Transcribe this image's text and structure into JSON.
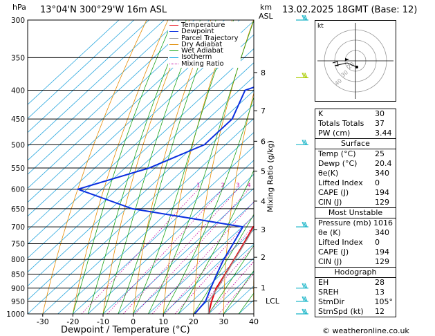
{
  "header": {
    "location": "13°04'N  300°29'W  16m  ASL",
    "datetime": "13.02.2025  18GMT  (Base: 12)",
    "left_unit": "hPa",
    "right_unit_km": "km",
    "right_unit_asl": "ASL",
    "credit": "© weatheronline.co.uk"
  },
  "chart_data": {
    "type": "line",
    "title": "",
    "xlabel": "Dewpoint / Temperature (°C)",
    "ylabel": "Mixing Ratio (g/kg)",
    "xlim": [
      -35,
      40
    ],
    "ylim_pressure": [
      1000,
      300
    ],
    "pressure_ticks": [
      300,
      350,
      400,
      450,
      500,
      550,
      600,
      650,
      700,
      750,
      800,
      850,
      900,
      950,
      1000
    ],
    "temp_ticks": [
      -30,
      -20,
      -10,
      0,
      10,
      20,
      30,
      40
    ],
    "km_ticks": [
      {
        "label": "8",
        "p": 372
      },
      {
        "label": "7",
        "p": 435
      },
      {
        "label": "6",
        "p": 493
      },
      {
        "label": "5",
        "p": 557
      },
      {
        "label": "4",
        "p": 630
      },
      {
        "label": "3",
        "p": 708
      },
      {
        "label": "2",
        "p": 793
      },
      {
        "label": "1",
        "p": 898
      },
      {
        "label": "LCL",
        "p": 948
      }
    ],
    "mixing_ratio_labels": [
      "1",
      "2",
      "3",
      "4",
      "6",
      "8",
      "10",
      "15",
      "20",
      "25"
    ],
    "legend": [
      {
        "name": "Temperature",
        "color": "#e8000b"
      },
      {
        "name": "Dewpoint",
        "color": "#0a2fe0"
      },
      {
        "name": "Parcel Trajectory",
        "color": "#9a9a9a"
      },
      {
        "name": "Dry Adiabat",
        "color": "#e08a00"
      },
      {
        "name": "Wet Adiabat",
        "color": "#00a000"
      },
      {
        "name": "Isotherm",
        "color": "#00a0e0"
      },
      {
        "name": "Mixing Ratio",
        "color": "#c000a0"
      }
    ],
    "series": [
      {
        "name": "Temperature",
        "color": "#e8000b",
        "points": [
          [
            1000,
            25
          ],
          [
            950,
            21.5
          ],
          [
            900,
            18.3
          ],
          [
            850,
            16.3
          ],
          [
            800,
            14
          ],
          [
            750,
            11.5
          ],
          [
            700,
            8.6
          ],
          [
            675,
            12.5
          ],
          [
            650,
            14.5
          ],
          [
            600,
            11
          ],
          [
            550,
            7
          ],
          [
            500,
            0
          ],
          [
            450,
            -6.5
          ],
          [
            400,
            -14
          ],
          [
            350,
            -24
          ],
          [
            300,
            -35
          ]
        ]
      },
      {
        "name": "Dewpoint",
        "color": "#0a2fe0",
        "points": [
          [
            1000,
            20.4
          ],
          [
            950,
            19.5
          ],
          [
            900,
            16.5
          ],
          [
            850,
            13.5
          ],
          [
            800,
            10.5
          ],
          [
            750,
            8
          ],
          [
            700,
            5.2
          ],
          [
            650,
            -38
          ],
          [
            600,
            -63
          ],
          [
            550,
            -47
          ],
          [
            500,
            -37
          ],
          [
            450,
            -37
          ],
          [
            400,
            -43
          ],
          [
            350,
            -24
          ],
          [
            300,
            -38
          ]
        ]
      },
      {
        "name": "Parcel Trajectory",
        "color": "#9a9a9a",
        "points": [
          [
            1000,
            25
          ],
          [
            950,
            20.5
          ],
          [
            900,
            18.8
          ],
          [
            850,
            16.5
          ],
          [
            800,
            14.2
          ],
          [
            750,
            11.8
          ],
          [
            700,
            9
          ],
          [
            650,
            6
          ],
          [
            600,
            2.6
          ],
          [
            550,
            -1
          ],
          [
            500,
            -5
          ],
          [
            450,
            -10
          ],
          [
            400,
            -16
          ],
          [
            350,
            -23
          ],
          [
            300,
            -31
          ]
        ]
      }
    ]
  },
  "indices": {
    "rows": [
      {
        "k": "K",
        "v": "30"
      },
      {
        "k": "Totals Totals",
        "v": "37"
      },
      {
        "k": "PW (cm)",
        "v": "3.44"
      }
    ],
    "surface_title": "Surface",
    "surface": [
      {
        "k": "Temp (°C)",
        "v": "25"
      },
      {
        "k": "Dewp (°C)",
        "v": "20.4"
      },
      {
        "k": "θe(K)",
        "v": "340"
      },
      {
        "k": "Lifted Index",
        "v": "0"
      },
      {
        "k": "CAPE (J)",
        "v": "194"
      },
      {
        "k": "CIN (J)",
        "v": "129"
      }
    ],
    "mu_title": "Most Unstable",
    "mu": [
      {
        "k": "Pressure (mb)",
        "v": "1016"
      },
      {
        "k": "θe (K)",
        "v": "340"
      },
      {
        "k": "Lifted Index",
        "v": "0"
      },
      {
        "k": "CAPE (J)",
        "v": "194"
      },
      {
        "k": "CIN (J)",
        "v": "129"
      }
    ],
    "hodo_title": "Hodograph",
    "hodo": [
      {
        "k": "EH",
        "v": "28"
      },
      {
        "k": "SREH",
        "v": "13"
      },
      {
        "k": "StmDir",
        "v": "105°"
      },
      {
        "k": "StmSpd (kt)",
        "v": "12"
      }
    ]
  },
  "hodograph": {
    "unit_label": "kt",
    "ring_labels": [
      "20",
      "30",
      "40"
    ]
  }
}
